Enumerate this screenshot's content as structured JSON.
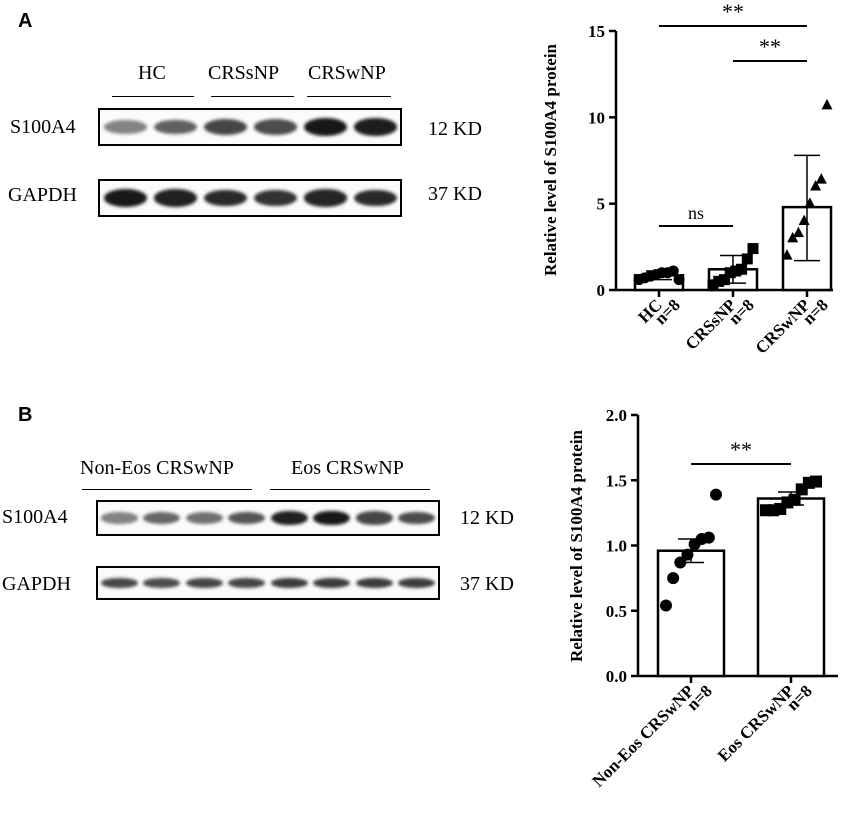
{
  "panel_a": {
    "letter": "A",
    "western_blot": {
      "groups": [
        "HC",
        "CRSsNP",
        "CRSwNP"
      ],
      "rows": [
        {
          "protein": "S100A4",
          "size": "12 KD",
          "band_intensity": [
            0.35,
            0.55,
            0.7,
            0.65,
            0.95,
            0.92
          ]
        },
        {
          "protein": "GAPDH",
          "size": "37 KD",
          "band_intensity": [
            0.95,
            0.9,
            0.85,
            0.8,
            0.88,
            0.85
          ]
        }
      ]
    }
  },
  "panel_b": {
    "letter": "B",
    "western_blot": {
      "groups": [
        "Non-Eos CRSwNP",
        "Eos CRSwNP"
      ],
      "rows": [
        {
          "protein": "S100A4",
          "size": "12 KD",
          "band_intensity": [
            0.35,
            0.5,
            0.45,
            0.6,
            0.9,
            0.95,
            0.7,
            0.65
          ]
        },
        {
          "protein": "GAPDH",
          "size": "37 KD",
          "band_intensity": [
            0.7,
            0.65,
            0.7,
            0.7,
            0.75,
            0.75,
            0.75,
            0.75
          ]
        }
      ]
    }
  },
  "chart_data": [
    {
      "type": "bar",
      "ylabel": "Relative level of S100A4 protein",
      "ylim": [
        0,
        15
      ],
      "yticks": [
        "0",
        "5",
        "10",
        "15"
      ],
      "categories": [
        "HC",
        "CRSsNP",
        "CRSwNP"
      ],
      "category_n": [
        "n=8",
        "n=8",
        "n=8"
      ],
      "values": [
        0.85,
        1.2,
        4.8
      ],
      "error_upper": [
        1.1,
        2.0,
        7.8
      ],
      "error_lower": [
        0.6,
        0.4,
        1.7
      ],
      "markers": [
        "circle",
        "square",
        "triangle"
      ],
      "points": [
        [
          0.6,
          0.7,
          0.8,
          0.9,
          1.0,
          1.0,
          1.1,
          0.6
        ],
        [
          0.3,
          0.5,
          0.6,
          1.0,
          1.1,
          1.2,
          1.8,
          2.4
        ],
        [
          2.0,
          3.0,
          3.3,
          4.0,
          5.0,
          6.0,
          6.4,
          10.7
        ]
      ],
      "significance": [
        {
          "from": 0,
          "to": 1,
          "label": "ns"
        },
        {
          "from": 1,
          "to": 2,
          "label": "**"
        },
        {
          "from": 0,
          "to": 2,
          "label": "**"
        }
      ]
    },
    {
      "type": "bar",
      "ylabel": "Relative level of S100A4 protein",
      "ylim": [
        0,
        2.0
      ],
      "yticks": [
        "0.0",
        "0.5",
        "1.0",
        "1.5",
        "2.0"
      ],
      "categories": [
        "Non-Eos CRSwNP",
        "Eos CRSwNP"
      ],
      "category_n": [
        "n=8",
        "n=8"
      ],
      "values": [
        0.96,
        1.36
      ],
      "error_upper": [
        1.05,
        1.41
      ],
      "error_lower": [
        0.87,
        1.31
      ],
      "markers": [
        "circle",
        "square"
      ],
      "points": [
        [
          0.54,
          0.75,
          0.87,
          0.93,
          1.01,
          1.05,
          1.06,
          1.39
        ],
        [
          1.27,
          1.27,
          1.28,
          1.33,
          1.35,
          1.43,
          1.48,
          1.49
        ]
      ],
      "significance": [
        {
          "from": 0,
          "to": 1,
          "label": "**"
        }
      ]
    }
  ]
}
